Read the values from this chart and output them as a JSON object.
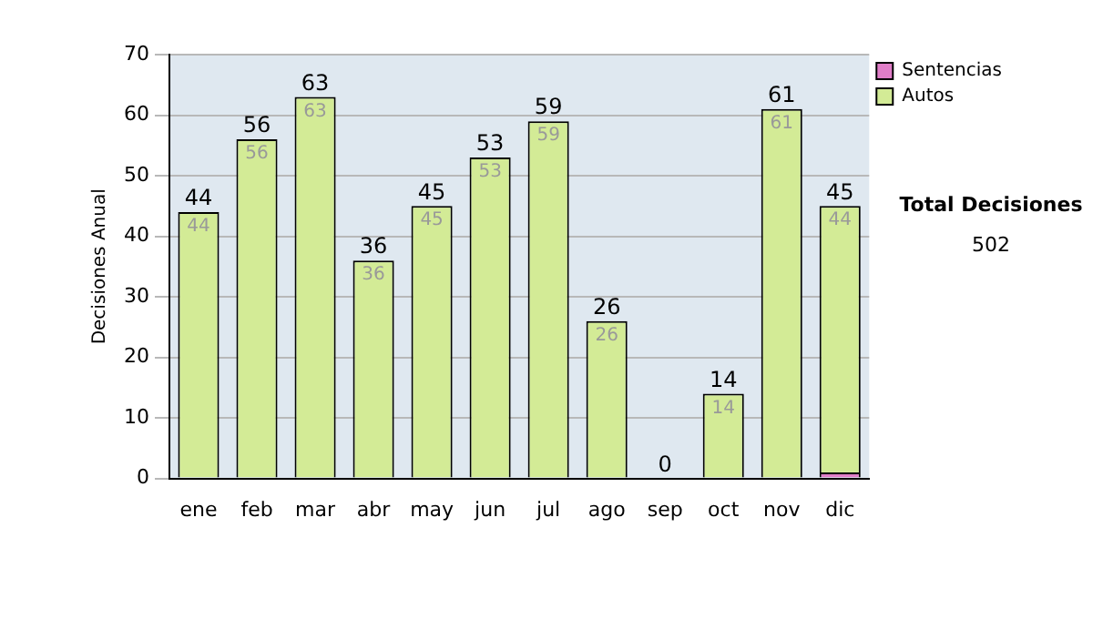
{
  "chart_data": {
    "type": "bar",
    "stacked": true,
    "ylabel": "Decisiones Anual",
    "categories": [
      "ene",
      "feb",
      "mar",
      "abr",
      "may",
      "jun",
      "jul",
      "ago",
      "sep",
      "oct",
      "nov",
      "dic"
    ],
    "series": [
      {
        "name": "Sentencias",
        "color": "#e07ec8",
        "values": [
          0,
          0,
          0,
          0,
          0,
          0,
          0,
          0,
          0,
          0,
          0,
          1
        ]
      },
      {
        "name": "Autos",
        "color": "#d3eb96",
        "values": [
          44,
          56,
          63,
          36,
          45,
          53,
          59,
          26,
          0,
          14,
          61,
          44
        ],
        "value_labels": [
          "44",
          "56",
          "63",
          "36",
          "45",
          "53",
          "59",
          "26",
          null,
          "14",
          "61",
          "44"
        ]
      }
    ],
    "totals": [
      "44",
      "56",
      "63",
      "36",
      "45",
      "53",
      "59",
      "26",
      "0",
      "14",
      "61",
      "45"
    ],
    "ylim": [
      0,
      70
    ],
    "yticks": [
      0,
      10,
      20,
      30,
      40,
      50,
      60,
      70
    ],
    "grid": "y",
    "legend": "right",
    "annotations": [
      "Total Decisiones",
      "502"
    ]
  }
}
